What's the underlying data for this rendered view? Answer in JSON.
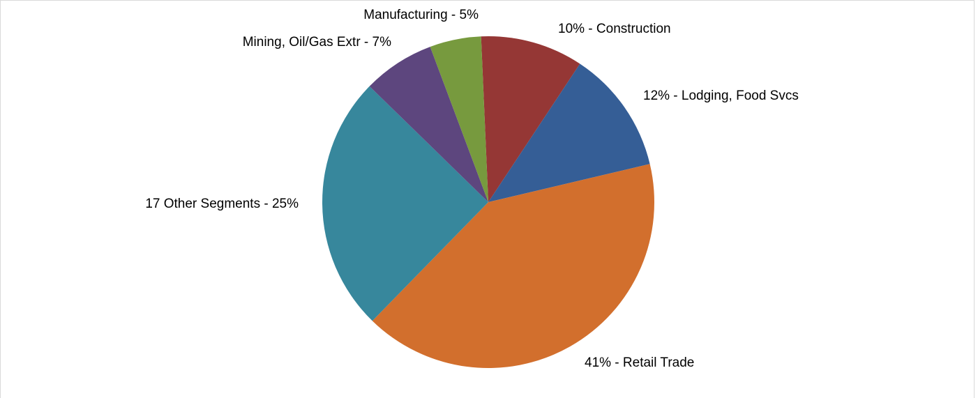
{
  "chart_data": {
    "type": "pie",
    "values": [
      10,
      12,
      41,
      25,
      7,
      5
    ],
    "value_labels": [
      "10% - Construction",
      "12% - Lodging, Food Svcs",
      "41% - Retail Trade",
      "17 Other Segments - 25%",
      "Mining, Oil/Gas Extr - 7%",
      "Manufacturing - 5%"
    ],
    "colors": [
      "#953735",
      "#355e96",
      "#d26f2d",
      "#37879c",
      "#5d467e",
      "#779a3e"
    ]
  }
}
